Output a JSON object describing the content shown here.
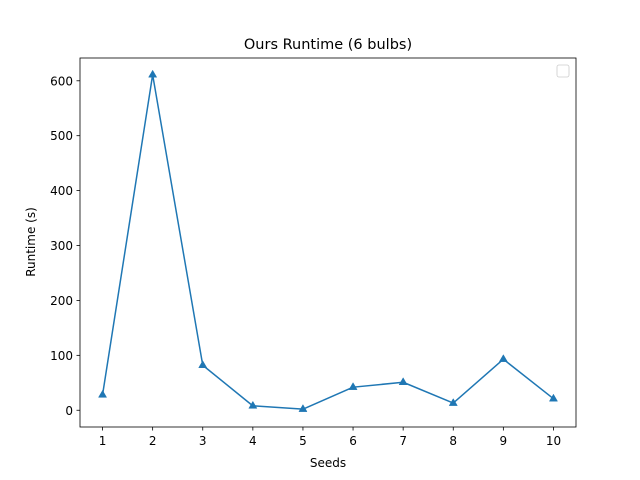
{
  "chart_data": {
    "type": "line",
    "title": "Ours Runtime (6 bulbs)",
    "xlabel": "Seeds",
    "ylabel": "Runtime (s)",
    "x": [
      1,
      2,
      3,
      4,
      5,
      6,
      7,
      8,
      9,
      10
    ],
    "series": [
      {
        "name": "",
        "values": [
          28,
          611,
          82,
          8,
          2,
          42,
          51,
          13,
          93,
          21
        ],
        "color": "#1f77b4",
        "marker": "triangle-up"
      }
    ],
    "xlim": [
      0.55,
      10.45
    ],
    "ylim": [
      -30.5,
      641.5
    ],
    "xticks": [
      "1",
      "2",
      "3",
      "4",
      "5",
      "6",
      "7",
      "8",
      "9",
      "10"
    ],
    "yticks": [
      "0",
      "100",
      "200",
      "300",
      "400",
      "500",
      "600"
    ],
    "grid": false,
    "legend": "top-right, empty"
  }
}
